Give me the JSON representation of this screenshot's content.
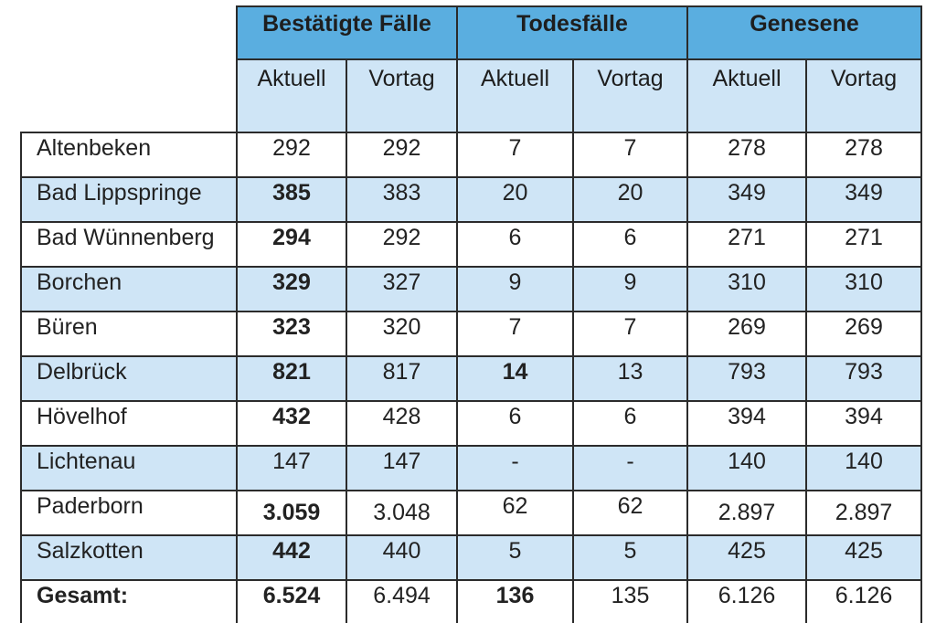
{
  "headers": {
    "groups": [
      "Bestätigte Fälle",
      "Todesfälle",
      "Genesene"
    ],
    "sub": [
      "Aktuell",
      "Vortag",
      "Aktuell",
      "Vortag",
      "Aktuell",
      "Vortag"
    ]
  },
  "rows": [
    {
      "name": "Altenbeken",
      "values": [
        "292",
        "292",
        "7",
        "7",
        "278",
        "278"
      ],
      "bold": [
        false,
        false,
        false,
        false,
        false,
        false
      ]
    },
    {
      "name": "Bad Lippspringe",
      "values": [
        "385",
        "383",
        "20",
        "20",
        "349",
        "349"
      ],
      "bold": [
        true,
        false,
        false,
        false,
        false,
        false
      ]
    },
    {
      "name": "Bad Wünnenberg",
      "values": [
        "294",
        "292",
        "6",
        "6",
        "271",
        "271"
      ],
      "bold": [
        true,
        false,
        false,
        false,
        false,
        false
      ]
    },
    {
      "name": "Borchen",
      "values": [
        "329",
        "327",
        "9",
        "9",
        "310",
        "310"
      ],
      "bold": [
        true,
        false,
        false,
        false,
        false,
        false
      ]
    },
    {
      "name": "Büren",
      "values": [
        "323",
        "320",
        "7",
        "7",
        "269",
        "269"
      ],
      "bold": [
        true,
        false,
        false,
        false,
        false,
        false
      ]
    },
    {
      "name": "Delbrück",
      "values": [
        "821",
        "817",
        "14",
        "13",
        "793",
        "793"
      ],
      "bold": [
        true,
        false,
        true,
        false,
        false,
        false
      ]
    },
    {
      "name": "Hövelhof",
      "values": [
        "432",
        "428",
        "6",
        "6",
        "394",
        "394"
      ],
      "bold": [
        true,
        false,
        false,
        false,
        false,
        false
      ]
    },
    {
      "name": "Lichtenau",
      "values": [
        "147",
        "147",
        "-",
        "-",
        "140",
        "140"
      ],
      "bold": [
        false,
        false,
        false,
        false,
        false,
        false
      ]
    },
    {
      "name": "Paderborn",
      "values": [
        "3.059",
        "3.048",
        "62",
        "62",
        "2.897",
        "2.897"
      ],
      "bold": [
        true,
        false,
        false,
        false,
        false,
        false
      ]
    },
    {
      "name": "Salzkotten",
      "values": [
        "442",
        "440",
        "5",
        "5",
        "425",
        "425"
      ],
      "bold": [
        true,
        false,
        false,
        false,
        false,
        false
      ]
    }
  ],
  "total": {
    "label": "Gesamt:",
    "values": [
      "6.524",
      "6.494",
      "136",
      "135",
      "6.126",
      "6.126"
    ],
    "bold": [
      true,
      false,
      true,
      false,
      false,
      false
    ]
  },
  "colors": {
    "header_blue": "#5aaee0",
    "light_blue": "#cfe5f6",
    "border": "#2b2b2b"
  }
}
